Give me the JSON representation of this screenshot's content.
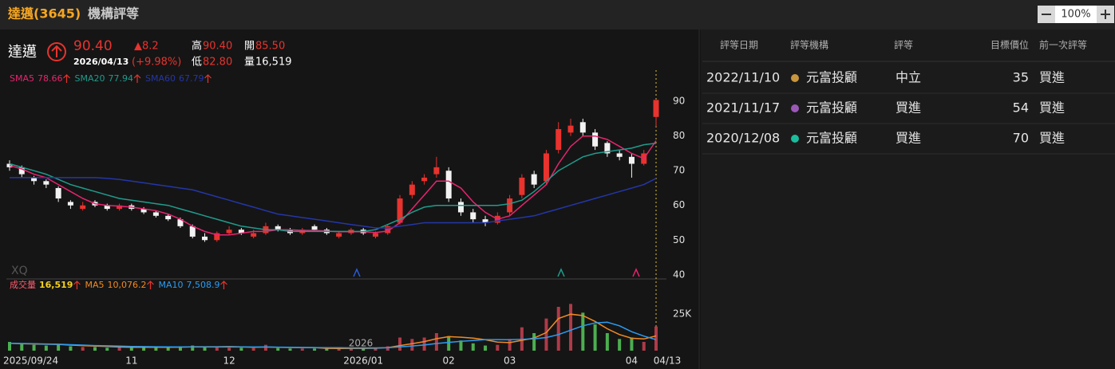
{
  "header": {
    "title": "達邁(3645)",
    "subtitle": "機構評等"
  },
  "zoom": {
    "value": "100%"
  },
  "quote": {
    "name": "達邁",
    "price": "90.40",
    "date": "2026/04/13",
    "change": "▲8.2",
    "change_pct": "(+9.98%)",
    "high_label": "高",
    "high": "90.40",
    "open_label": "開",
    "open": "85.50",
    "low_label": "低",
    "low": "82.80",
    "volume_label": "量",
    "volume": "16,519"
  },
  "watermark": "XQ",
  "chart_data": [
    {
      "type": "candlestick",
      "categories": [
        "2025/09/24",
        null,
        null,
        null,
        null,
        null,
        null,
        null,
        null,
        null,
        "11",
        null,
        null,
        null,
        null,
        null,
        null,
        null,
        "12",
        null,
        null,
        null,
        null,
        null,
        null,
        null,
        null,
        null,
        null,
        "2026/01",
        null,
        null,
        null,
        null,
        null,
        null,
        "02",
        null,
        null,
        null,
        null,
        "03",
        null,
        null,
        null,
        null,
        null,
        null,
        null,
        null,
        null,
        "04",
        null,
        "04/13"
      ],
      "open": [
        72,
        71,
        68,
        67,
        65,
        61,
        59,
        61,
        60,
        59,
        60,
        59,
        58,
        57,
        56,
        54,
        51,
        50,
        52,
        53,
        51,
        52,
        54,
        53,
        52,
        54,
        53,
        51,
        52,
        53,
        51,
        52,
        55,
        63,
        67,
        69,
        70,
        61,
        58,
        56,
        55,
        58,
        63,
        69,
        67,
        76,
        81,
        84,
        81,
        78,
        75,
        74,
        72,
        85.5
      ],
      "high": [
        73,
        71.5,
        68.5,
        67.5,
        65.5,
        61.5,
        61,
        61.5,
        60.5,
        60.5,
        60.5,
        59.5,
        58.5,
        57.5,
        56.5,
        54.5,
        52,
        52.5,
        54,
        53.5,
        53,
        55,
        54.5,
        53.5,
        53.5,
        54.5,
        53.5,
        52.5,
        53.5,
        53.5,
        52.5,
        54.5,
        63,
        67,
        69,
        74,
        71,
        62,
        59,
        57,
        58,
        63,
        69,
        70,
        76,
        84,
        85,
        85,
        82,
        78.5,
        76,
        75,
        76,
        90.4
      ],
      "low": [
        70,
        68,
        66,
        65,
        61,
        59,
        58.5,
        59.5,
        58.5,
        58.5,
        58.5,
        57.5,
        56.5,
        55.5,
        53.5,
        50.5,
        49.5,
        49.5,
        51.5,
        51.5,
        50.5,
        51.5,
        52.5,
        51.5,
        51.5,
        52.5,
        51.5,
        50.5,
        51.5,
        51.5,
        50.5,
        51.5,
        54.5,
        62,
        66,
        68,
        61,
        57,
        55,
        54,
        54.5,
        57,
        62,
        65,
        66,
        75,
        80,
        80,
        76,
        74,
        73,
        68,
        71.5,
        82.8
      ],
      "close": [
        71,
        69,
        67,
        66,
        62,
        60,
        60,
        60,
        59,
        60,
        59,
        58,
        57,
        56,
        54,
        51,
        50,
        52,
        53,
        52,
        52,
        54,
        53,
        52,
        53,
        53,
        52,
        52,
        53,
        52,
        52,
        54,
        62,
        66,
        68,
        71,
        62,
        58,
        56,
        55,
        57,
        62,
        68,
        66,
        75,
        82,
        83,
        81,
        77,
        75,
        74,
        72,
        75,
        90.4
      ],
      "up_color": "#e8332e",
      "down_color": "#f2f2f2",
      "series": [
        {
          "name": "SMA5",
          "color": "#e8246e",
          "values": [
            71.5,
            70.5,
            69,
            68,
            66,
            64,
            62,
            60.5,
            60,
            59.8,
            59.5,
            59,
            58.5,
            57.5,
            56,
            54,
            52.5,
            51.5,
            51.5,
            52,
            52.5,
            52.5,
            53,
            53,
            52.8,
            52.8,
            52.6,
            52.4,
            52.4,
            52.4,
            52.2,
            52.6,
            55,
            59,
            63,
            67,
            67,
            65,
            61,
            58,
            56,
            57,
            60,
            63,
            66,
            72,
            77,
            80,
            80,
            79,
            77,
            75,
            73.5,
            78.66
          ]
        },
        {
          "name": "SMA20",
          "color": "#1f9c8c",
          "values": [
            72,
            71,
            70,
            69,
            67.5,
            66,
            65,
            64,
            63,
            62,
            61.5,
            61,
            60.5,
            60,
            59,
            58,
            57,
            56,
            55,
            54,
            53.5,
            53,
            53,
            52.5,
            52.5,
            52.5,
            52.5,
            52.5,
            52.5,
            52.5,
            53,
            54.5,
            56,
            58,
            59.5,
            60,
            60,
            60,
            60,
            60,
            60,
            60.5,
            61.5,
            64,
            67,
            70,
            72,
            74,
            75,
            75.5,
            76,
            76.5,
            77.5,
            77.94
          ]
        },
        {
          "name": "SMA60",
          "color": "#2436a8",
          "values": [
            68,
            68,
            68,
            68,
            68,
            68,
            68,
            68,
            67.8,
            67.5,
            67,
            66.5,
            66,
            65.5,
            65,
            64.5,
            63.5,
            62.5,
            61.5,
            60.5,
            59.5,
            58.5,
            57.5,
            57,
            56.5,
            56,
            55.5,
            55,
            54.5,
            54,
            53.5,
            53.5,
            54,
            54.5,
            55,
            55,
            55,
            55,
            55,
            55,
            55.5,
            56,
            56.5,
            57,
            58,
            59,
            60,
            61,
            62,
            63,
            64,
            65,
            66,
            67.79
          ]
        }
      ],
      "legend_labels": [
        "78.66",
        "77.94",
        "67.79"
      ],
      "ylim": [
        38.8,
        99
      ],
      "yticks": [
        40,
        50,
        60,
        70,
        80,
        90
      ]
    },
    {
      "type": "bar",
      "annotation": "2026",
      "up_color": "#b03a48",
      "down_color": "#4caf50",
      "series": [
        {
          "name": "成交量",
          "color": "#ff5a6e",
          "values": [
            6000,
            4500,
            4000,
            3500,
            4000,
            3000,
            2500,
            2500,
            2000,
            2500,
            2000,
            2500,
            2500,
            2000,
            3000,
            3500,
            3000,
            2500,
            2000,
            2000,
            1800,
            4000,
            1800,
            1500,
            1500,
            1500,
            1500,
            1500,
            1800,
            1800,
            2000,
            3000,
            9000,
            8000,
            9000,
            12000,
            10000,
            7000,
            5000,
            3500,
            4000,
            8000,
            16000,
            12000,
            22000,
            30000,
            32000,
            26000,
            18000,
            12000,
            8000,
            9000,
            6000,
            16519
          ]
        },
        {
          "name": "MA5",
          "color": "#f08a24",
          "values": [
            5000,
            4800,
            4600,
            4400,
            4300,
            3800,
            3500,
            3100,
            2900,
            2500,
            2300,
            2300,
            2300,
            2300,
            2400,
            2700,
            2700,
            2700,
            2800,
            2600,
            2300,
            2500,
            2300,
            2200,
            2100,
            2100,
            1600,
            1500,
            1600,
            1600,
            1700,
            2000,
            3500,
            4800,
            6200,
            8200,
            9600,
            9200,
            8600,
            7500,
            5900,
            5500,
            7100,
            8700,
            12400,
            22000,
            25000,
            24000,
            20000,
            15000,
            11000,
            8500,
            8000,
            10076.2
          ]
        },
        {
          "name": "MA10",
          "color": "#2a9df4",
          "values": [
            5000,
            4900,
            4800,
            4600,
            4400,
            4100,
            3800,
            3500,
            3300,
            3100,
            2900,
            2800,
            2700,
            2600,
            2500,
            2500,
            2500,
            2500,
            2500,
            2500,
            2500,
            2500,
            2400,
            2300,
            2200,
            2100,
            2000,
            2000,
            1900,
            1900,
            1900,
            2000,
            2600,
            3200,
            3900,
            4900,
            5700,
            6400,
            7000,
            7600,
            7600,
            7500,
            7800,
            8100,
            9000,
            11000,
            14000,
            17000,
            19000,
            19500,
            17000,
            13000,
            10000,
            7508.9
          ]
        }
      ],
      "legend_labels": [
        "16,519",
        "10,076.2",
        "7,508.9"
      ],
      "ylim": [
        0,
        48000
      ],
      "yticks": [
        {
          "value": 25000,
          "label": "25K"
        }
      ]
    }
  ],
  "table": {
    "columns": [
      "評等日期",
      "評等機構",
      "評等",
      "目標價位",
      "前一次評等"
    ],
    "rows": [
      [
        "2022/11/10",
        "元富投顧",
        "中立",
        35,
        "買進"
      ],
      [
        "2021/11/17",
        "元富投顧",
        "買進",
        54,
        "買進"
      ],
      [
        "2020/12/08",
        "元富投顧",
        "買進",
        70,
        "買進"
      ]
    ],
    "dot_colors": [
      "#c8963e",
      "#9b59b6",
      "#1abc9c"
    ]
  }
}
